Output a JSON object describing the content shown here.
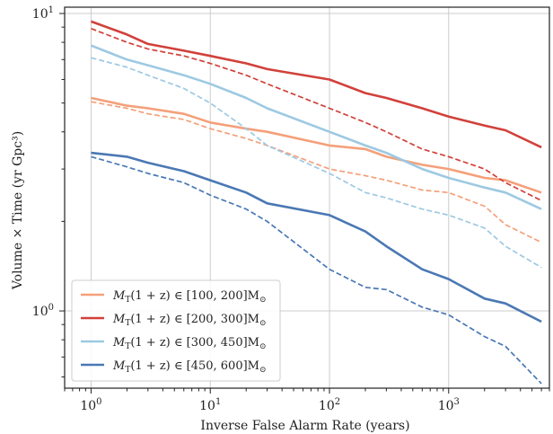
{
  "chart_data": {
    "type": "line",
    "title": "",
    "xlabel": "Inverse False Alarm Rate (years)",
    "ylabel": "Volume × Time (yr Gpc³)",
    "xscale": "log",
    "yscale": "log",
    "xlim": [
      0.6,
      7000
    ],
    "ylim": [
      0.55,
      10.5
    ],
    "grid": true,
    "legend_position": "lower-left",
    "x_ticks": [
      {
        "value": 1,
        "base": "10",
        "exp": "0"
      },
      {
        "value": 10,
        "base": "10",
        "exp": "1"
      },
      {
        "value": 100,
        "base": "10",
        "exp": "2"
      },
      {
        "value": 1000,
        "base": "10",
        "exp": "3"
      }
    ],
    "y_ticks": [
      {
        "value": 1,
        "base": "10",
        "exp": "0"
      },
      {
        "value": 10,
        "base": "10",
        "exp": "1"
      }
    ],
    "x": [
      1,
      2,
      3,
      6,
      10,
      20,
      30,
      100,
      200,
      300,
      600,
      1000,
      2000,
      3000,
      6000
    ],
    "series": [
      {
        "name": "M_T(1+z) ∈ [100, 200] M_⊙",
        "color": "#f4a07a",
        "solid": [
          5.2,
          4.9,
          4.8,
          4.6,
          4.3,
          4.1,
          4.0,
          3.6,
          3.5,
          3.3,
          3.1,
          3.0,
          2.8,
          2.75,
          2.5
        ],
        "dashed": [
          5.05,
          4.8,
          4.6,
          4.4,
          4.1,
          3.8,
          3.6,
          3.0,
          2.85,
          2.75,
          2.55,
          2.5,
          2.25,
          1.95,
          1.7
        ]
      },
      {
        "name": "M_T(1+z) ∈ [200, 300] M_⊙",
        "color": "#d1413a",
        "solid": [
          9.4,
          8.5,
          7.9,
          7.5,
          7.2,
          6.8,
          6.5,
          6.0,
          5.4,
          5.2,
          4.8,
          4.5,
          4.2,
          4.05,
          3.55
        ],
        "dashed": [
          8.9,
          8.0,
          7.6,
          7.2,
          6.8,
          6.2,
          5.8,
          4.8,
          4.3,
          4.0,
          3.5,
          3.3,
          3.0,
          2.7,
          2.35
        ]
      },
      {
        "name": "M_T(1+z) ∈ [300, 450] M_⊙",
        "color": "#9dc9e2",
        "solid": [
          7.8,
          7.0,
          6.7,
          6.2,
          5.8,
          5.2,
          4.8,
          4.0,
          3.6,
          3.4,
          3.0,
          2.8,
          2.6,
          2.5,
          2.2
        ],
        "dashed": [
          7.1,
          6.6,
          6.2,
          5.6,
          5.0,
          4.1,
          3.6,
          2.9,
          2.5,
          2.4,
          2.2,
          2.1,
          1.9,
          1.65,
          1.4
        ]
      },
      {
        "name": "M_T(1+z) ∈ [450, 600] M_⊙",
        "color": "#4a78b4",
        "solid": [
          3.4,
          3.3,
          3.15,
          2.95,
          2.75,
          2.5,
          2.3,
          2.1,
          1.85,
          1.65,
          1.38,
          1.28,
          1.1,
          1.06,
          0.92
        ],
        "dashed": [
          3.3,
          3.05,
          2.9,
          2.7,
          2.45,
          2.2,
          2.0,
          1.38,
          1.2,
          1.18,
          1.03,
          0.97,
          0.82,
          0.76,
          0.57
        ]
      }
    ],
    "legend": [
      {
        "pre": "M",
        "sub": "T",
        "mid": "(1 + z) ∈ [100, 200]M",
        "sub2": "⊙"
      },
      {
        "pre": "M",
        "sub": "T",
        "mid": "(1 + z) ∈ [200, 300]M",
        "sub2": "⊙"
      },
      {
        "pre": "M",
        "sub": "T",
        "mid": "(1 + z) ∈ [300, 450]M",
        "sub2": "⊙"
      },
      {
        "pre": "M",
        "sub": "T",
        "mid": "(1 + z) ∈ [450, 600]M",
        "sub2": "⊙"
      }
    ]
  }
}
